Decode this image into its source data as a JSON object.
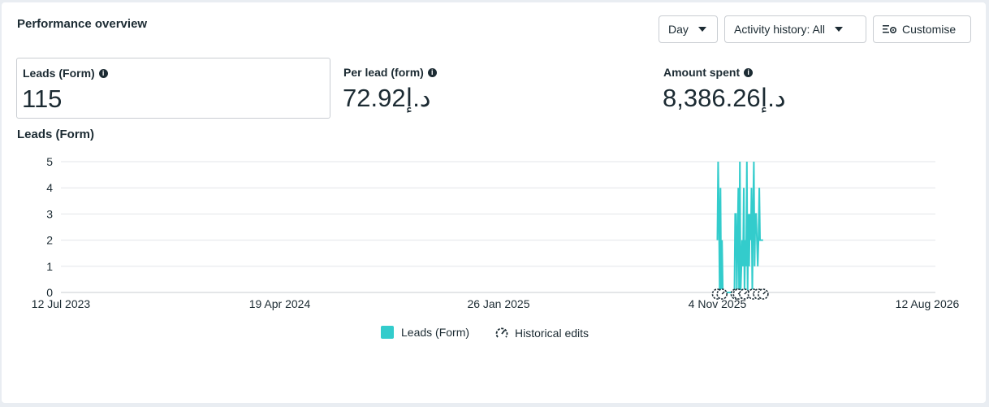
{
  "header": {
    "title": "Performance overview",
    "day_label": "Day",
    "activity_label": "Activity history: All",
    "customise_label": "Customise"
  },
  "metrics": [
    {
      "label": "Leads (Form)",
      "value": "115"
    },
    {
      "label": "Per lead (form)",
      "value": "72.92د.إ"
    },
    {
      "label": "Amount spent",
      "value": "8,386.26د.إ"
    }
  ],
  "chart_title": "Leads (Form)",
  "chart_data": {
    "type": "line",
    "title": "",
    "xlabel": "",
    "ylabel": "",
    "ylim": [
      0,
      5
    ],
    "yticks": [
      "0",
      "1",
      "2",
      "3",
      "4",
      "5"
    ],
    "xticks": [
      "12 Jul 2023",
      "19 Apr 2024",
      "26 Jan 2025",
      "4 Nov 2025",
      "12 Aug 2026"
    ],
    "grid": true,
    "series": [
      {
        "name": "Leads (Form)",
        "color": "#33cccc",
        "x": [
          "2025-11-04",
          "2025-11-05",
          "2025-11-06",
          "2025-11-07",
          "2025-11-08",
          "2025-11-09",
          "2025-11-10",
          "2025-11-11",
          "2025-11-12",
          "2025-11-13",
          "2025-11-14",
          "2025-11-15",
          "2025-11-16",
          "2025-11-17",
          "2025-11-18",
          "2025-11-19",
          "2025-11-20",
          "2025-11-21",
          "2025-11-22",
          "2025-11-23",
          "2025-11-24",
          "2025-11-25",
          "2025-11-26",
          "2025-11-27",
          "2025-11-28",
          "2025-11-29",
          "2025-11-30",
          "2025-12-01",
          "2025-12-02",
          "2025-12-03",
          "2025-12-04",
          "2025-12-05",
          "2025-12-06",
          "2025-12-07",
          "2025-12-08",
          "2025-12-09",
          "2025-12-10",
          "2025-12-11",
          "2025-12-12",
          "2025-12-13",
          "2025-12-14",
          "2025-12-15",
          "2025-12-16",
          "2025-12-17",
          "2025-12-18",
          "2025-12-19",
          "2025-12-20",
          "2025-12-21",
          "2025-12-22",
          "2025-12-23",
          "2025-12-24",
          "2025-12-25",
          "2025-12-26",
          "2025-12-27",
          "2025-12-28",
          "2025-12-29",
          "2025-12-30",
          "2025-12-31",
          "2026-01-01",
          "2026-01-02"
        ],
        "values": [
          2,
          5,
          3,
          0,
          4,
          0,
          2,
          0,
          0,
          0,
          0,
          0,
          0,
          0,
          0,
          0,
          0,
          0,
          0,
          0,
          0,
          0,
          0,
          3,
          3,
          0,
          2,
          4,
          0,
          5,
          0,
          1,
          2,
          1,
          4,
          0,
          2,
          1,
          5,
          0,
          3,
          1,
          3,
          2,
          4,
          0,
          3,
          5,
          1,
          3,
          3,
          2,
          1,
          2,
          4,
          2,
          2,
          2,
          2,
          2
        ]
      }
    ],
    "annotations": "Historical edits",
    "legend": [
      {
        "label": "Leads (Form)",
        "icon": "teal-square"
      },
      {
        "label": "Historical edits",
        "icon": "gauge-icon"
      }
    ]
  }
}
